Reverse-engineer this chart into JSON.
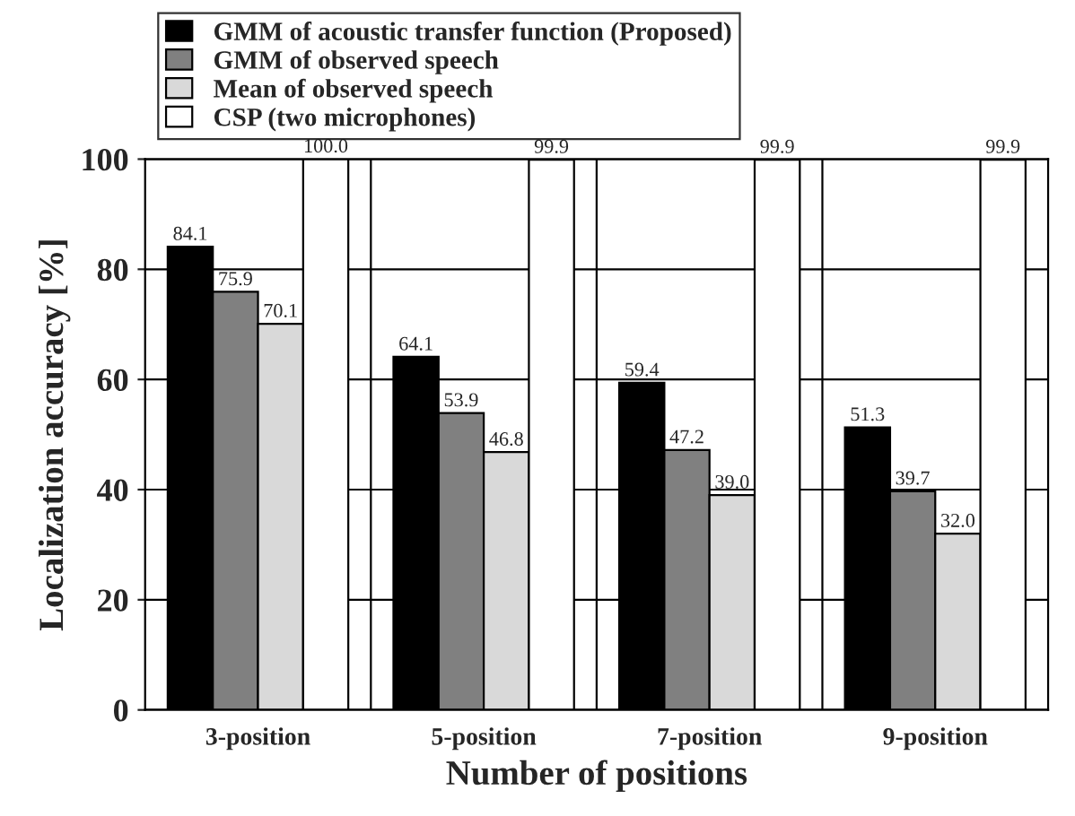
{
  "chart_data": {
    "type": "bar",
    "xlabel": "Number of positions",
    "ylabel": "Localization accuracy [%]",
    "categories": [
      "3-position",
      "5-position",
      "7-position",
      "9-position"
    ],
    "series": [
      {
        "name": "GMM of acoustic transfer function (Proposed)",
        "color": "#000000",
        "values": [
          84.1,
          64.1,
          59.4,
          51.3
        ],
        "value_labels": [
          "84.1",
          "64.1",
          "59.4",
          "51.3"
        ]
      },
      {
        "name": "GMM of observed speech",
        "color": "#808080",
        "values": [
          75.9,
          53.9,
          47.2,
          39.7
        ],
        "value_labels": [
          "75.9",
          "53.9",
          "47.2",
          "39.7"
        ]
      },
      {
        "name": "Mean of observed speech",
        "color": "#d9d9d9",
        "values": [
          70.1,
          46.8,
          39.0,
          32.0
        ],
        "value_labels": [
          "70.1",
          "46.8",
          "39.0",
          "32.0"
        ]
      },
      {
        "name": "CSP (two microphones)",
        "color": "#ffffff",
        "values": [
          100.0,
          99.9,
          99.9,
          99.9
        ],
        "value_labels": [
          "100.0",
          "99.9",
          "99.9",
          "99.9"
        ]
      }
    ],
    "ylim": [
      0,
      100
    ],
    "yticks": [
      0,
      20,
      40,
      60,
      80,
      100
    ],
    "grid": "y",
    "legend": "top"
  }
}
